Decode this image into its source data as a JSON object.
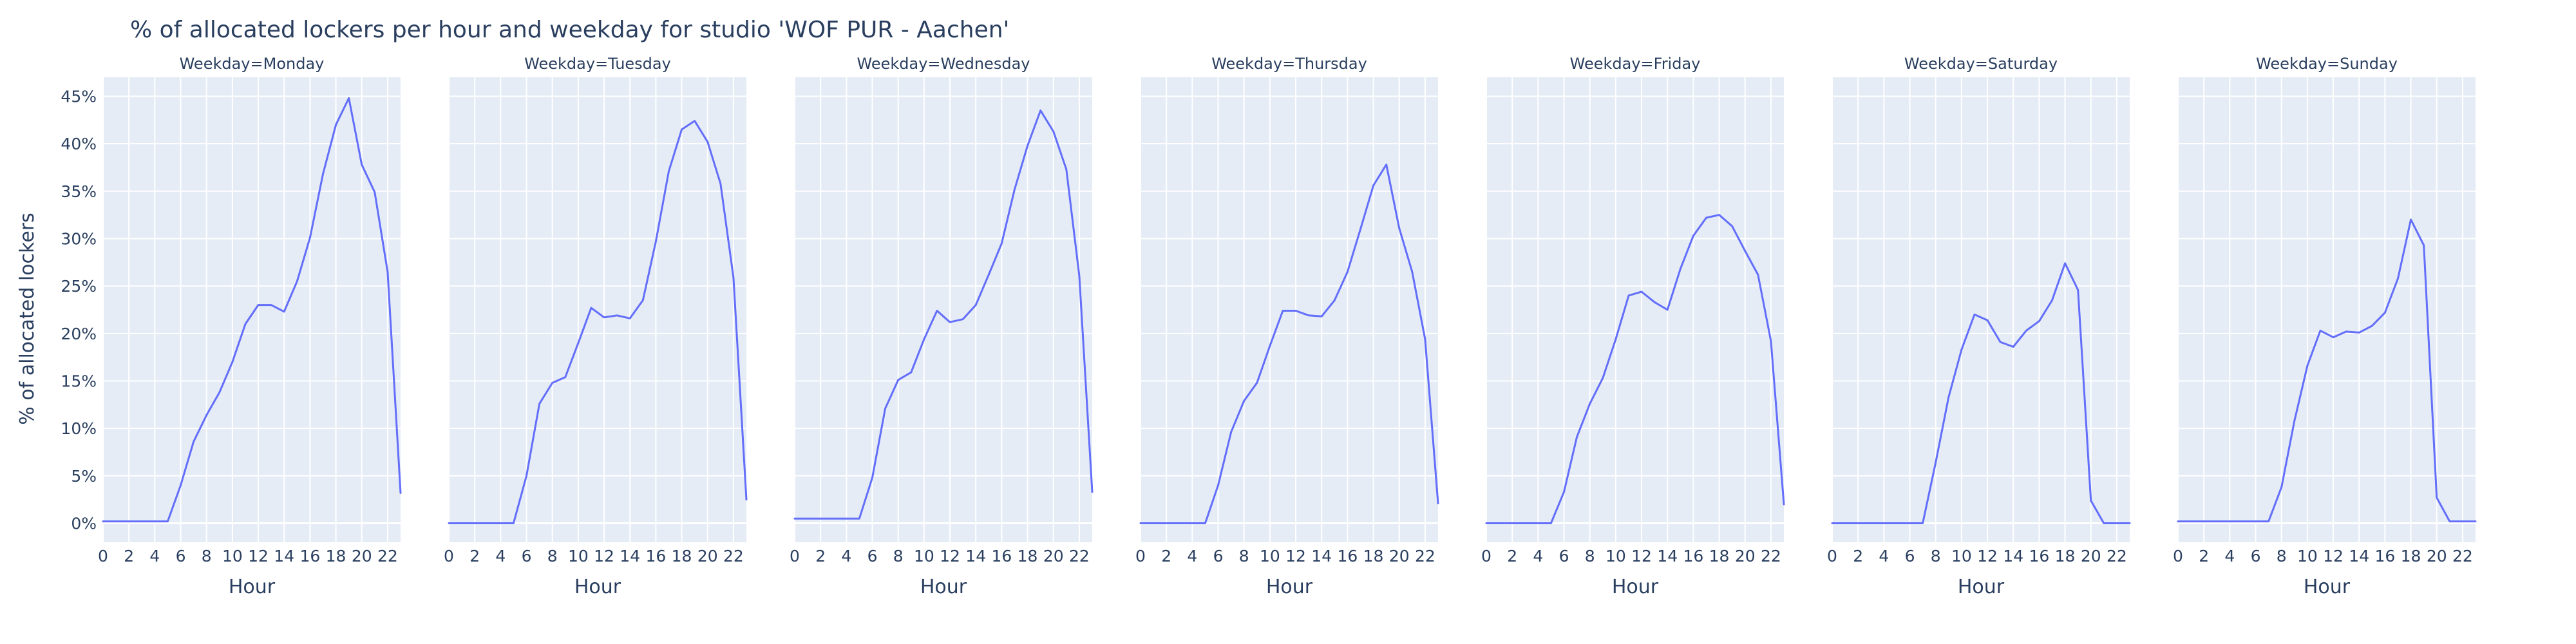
{
  "chart_data": {
    "type": "line",
    "title": "% of allocated lockers per hour and weekday for studio 'WOF PUR - Aachen'",
    "xlabel": "Hour",
    "ylabel": "% of allocated lockers",
    "xlim": [
      0,
      23
    ],
    "ylim": [
      -2,
      47
    ],
    "xticks": [
      0,
      2,
      4,
      6,
      8,
      10,
      12,
      14,
      16,
      18,
      20,
      22
    ],
    "yticks": [
      0,
      5,
      10,
      15,
      20,
      25,
      30,
      35,
      40,
      45
    ],
    "ytick_suffix": "%",
    "grid": true,
    "legend": "none",
    "colors": {
      "line": "#636efa",
      "plot_bg": "#e5ecf6",
      "grid": "#ffffff",
      "text": "#2a3f5f"
    },
    "x": [
      0,
      1,
      2,
      3,
      4,
      5,
      6,
      7,
      8,
      9,
      10,
      11,
      12,
      13,
      14,
      15,
      16,
      17,
      18,
      19,
      20,
      21,
      22,
      23
    ],
    "facets": [
      {
        "label": "Weekday=Monday",
        "values": [
          0.2,
          0.2,
          0.2,
          0.2,
          0.2,
          0.2,
          4,
          8.6,
          11.4,
          13.8,
          17,
          21,
          23,
          23,
          22.3,
          25.5,
          30.1,
          36.8,
          42,
          44.8,
          37.8,
          34.9,
          26.5,
          3.2
        ]
      },
      {
        "label": "Weekday=Tuesday",
        "values": [
          0,
          0,
          0,
          0,
          0,
          0,
          5,
          12.6,
          14.8,
          15.4,
          19,
          22.7,
          21.7,
          21.9,
          21.6,
          23.5,
          29.7,
          37.1,
          41.5,
          42.4,
          40.2,
          35.8,
          25.9,
          2.5
        ]
      },
      {
        "label": "Weekday=Wednesday",
        "values": [
          0.5,
          0.5,
          0.5,
          0.5,
          0.5,
          0.5,
          4.8,
          12.1,
          15.1,
          15.9,
          19.4,
          22.4,
          21.2,
          21.5,
          23,
          26.2,
          29.5,
          35.2,
          39.8,
          43.5,
          41.3,
          37.3,
          26.1,
          3.3
        ]
      },
      {
        "label": "Weekday=Thursday",
        "values": [
          0,
          0,
          0,
          0,
          0,
          0,
          4,
          9.6,
          12.9,
          14.8,
          18.7,
          22.4,
          22.4,
          21.9,
          21.8,
          23.5,
          26.5,
          31,
          35.6,
          37.8,
          31.1,
          26.5,
          19.4,
          2.1
        ]
      },
      {
        "label": "Weekday=Friday",
        "values": [
          0,
          0,
          0,
          0,
          0,
          0,
          3.3,
          9.1,
          12.6,
          15.3,
          19.4,
          24,
          24.4,
          23.3,
          22.5,
          26.8,
          30.3,
          32.2,
          32.5,
          31.3,
          28.7,
          26.2,
          19.2,
          2
        ]
      },
      {
        "label": "Weekday=Saturday",
        "values": [
          0,
          0,
          0,
          0,
          0,
          0,
          0,
          0,
          6.4,
          13.3,
          18.3,
          22,
          21.4,
          19.1,
          18.6,
          20.3,
          21.3,
          23.5,
          27.4,
          24.6,
          2.4,
          0,
          0,
          0
        ]
      },
      {
        "label": "Weekday=Sunday",
        "values": [
          0.2,
          0.2,
          0.2,
          0.2,
          0.2,
          0.2,
          0.2,
          0.2,
          3.8,
          10.8,
          16.6,
          20.3,
          19.6,
          20.2,
          20.1,
          20.8,
          22.2,
          25.8,
          32,
          29.3,
          2.7,
          0.2,
          0.2,
          0.2
        ]
      }
    ]
  }
}
